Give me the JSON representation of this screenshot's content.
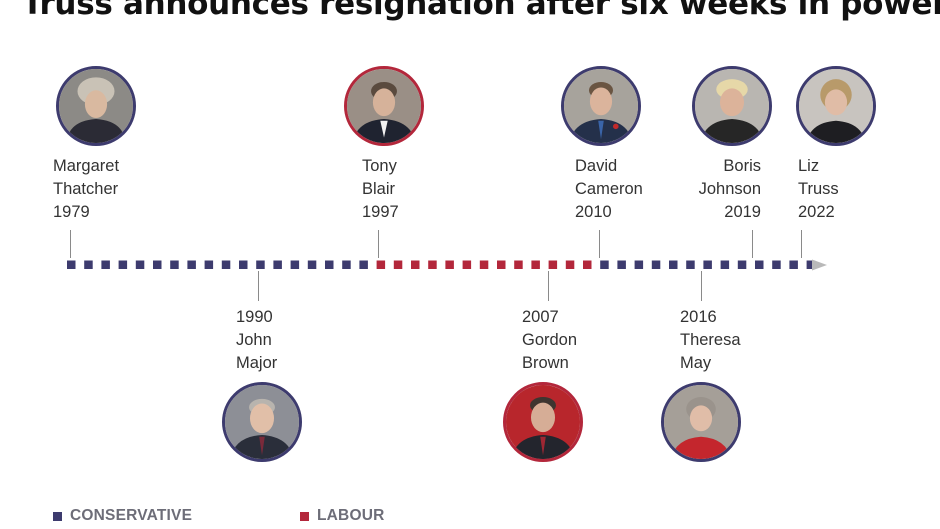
{
  "title": "Truss announces resignation after six weeks in power",
  "colors": {
    "conservative": "#3d3b6e",
    "labour": "#b3273b",
    "arrow": "#b9b9b9"
  },
  "legend": {
    "conservative": "CONSERVATIVE",
    "labour": "LABOUR"
  },
  "leaders": [
    {
      "id": "thatcher",
      "first": "Margaret",
      "last": "Thatcher",
      "year": "1979",
      "party": "conservative"
    },
    {
      "id": "major",
      "first": "John",
      "last": "Major",
      "year": "1990",
      "party": "conservative"
    },
    {
      "id": "blair",
      "first": "Tony",
      "last": "Blair",
      "year": "1997",
      "party": "labour"
    },
    {
      "id": "brown",
      "first": "Gordon",
      "last": "Brown",
      "year": "2007",
      "party": "labour"
    },
    {
      "id": "cameron",
      "first": "David",
      "last": "Cameron",
      "year": "2010",
      "party": "conservative"
    },
    {
      "id": "may",
      "first": "Theresa",
      "last": "May",
      "year": "2016",
      "party": "conservative"
    },
    {
      "id": "johnson",
      "first": "Boris",
      "last": "Johnson",
      "year": "2019",
      "party": "conservative"
    },
    {
      "id": "truss",
      "first": "Liz",
      "last": "Truss",
      "year": "2022",
      "party": "conservative"
    }
  ]
}
